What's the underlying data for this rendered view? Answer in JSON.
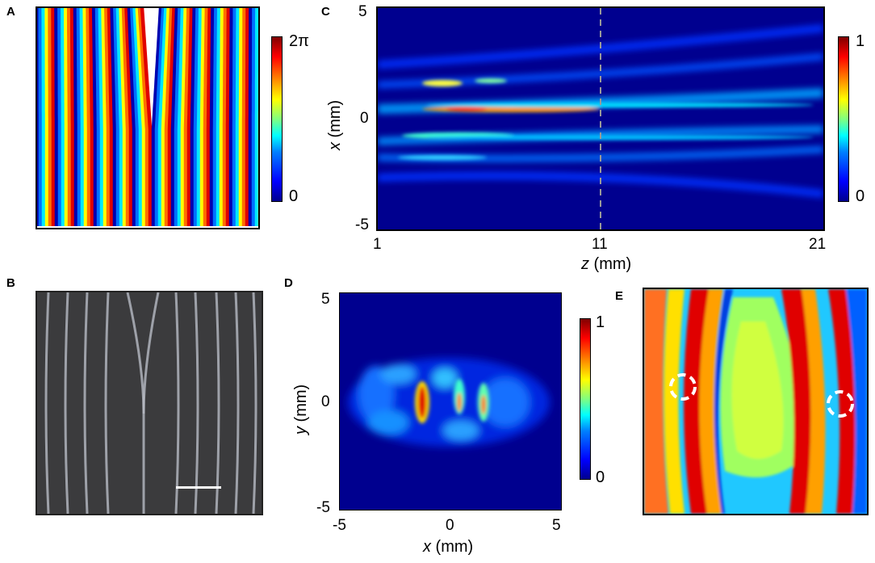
{
  "panels": {
    "a": {
      "letter": "A",
      "cbar_max": "2π",
      "cbar_min": "0"
    },
    "b": {
      "letter": "B"
    },
    "c": {
      "letter": "C",
      "y_ticks": [
        "5",
        "0",
        "-5"
      ],
      "x_ticks": [
        "1",
        "11",
        "21"
      ],
      "ylabel_var": "x",
      "ylabel_unit": " (mm)",
      "xlabel_var": "z",
      "xlabel_unit": " (mm)",
      "cbar_max": "1",
      "cbar_min": "0"
    },
    "d": {
      "letter": "D",
      "y_ticks": [
        "5",
        "0",
        "-5"
      ],
      "x_ticks": [
        "-5",
        "0",
        "5"
      ],
      "ylabel_var": "y",
      "ylabel_unit": " (mm)",
      "xlabel_var": "x",
      "xlabel_unit": " (mm)",
      "cbar_max": "1",
      "cbar_min": "0"
    },
    "e": {
      "letter": "E"
    }
  },
  "colors": {
    "jet_red": "#e00000",
    "jet_yellow": "#ffe000",
    "jet_cyan": "#00e0ff",
    "jet_blue": "#0018c0",
    "deep_blue": "#00008f"
  }
}
